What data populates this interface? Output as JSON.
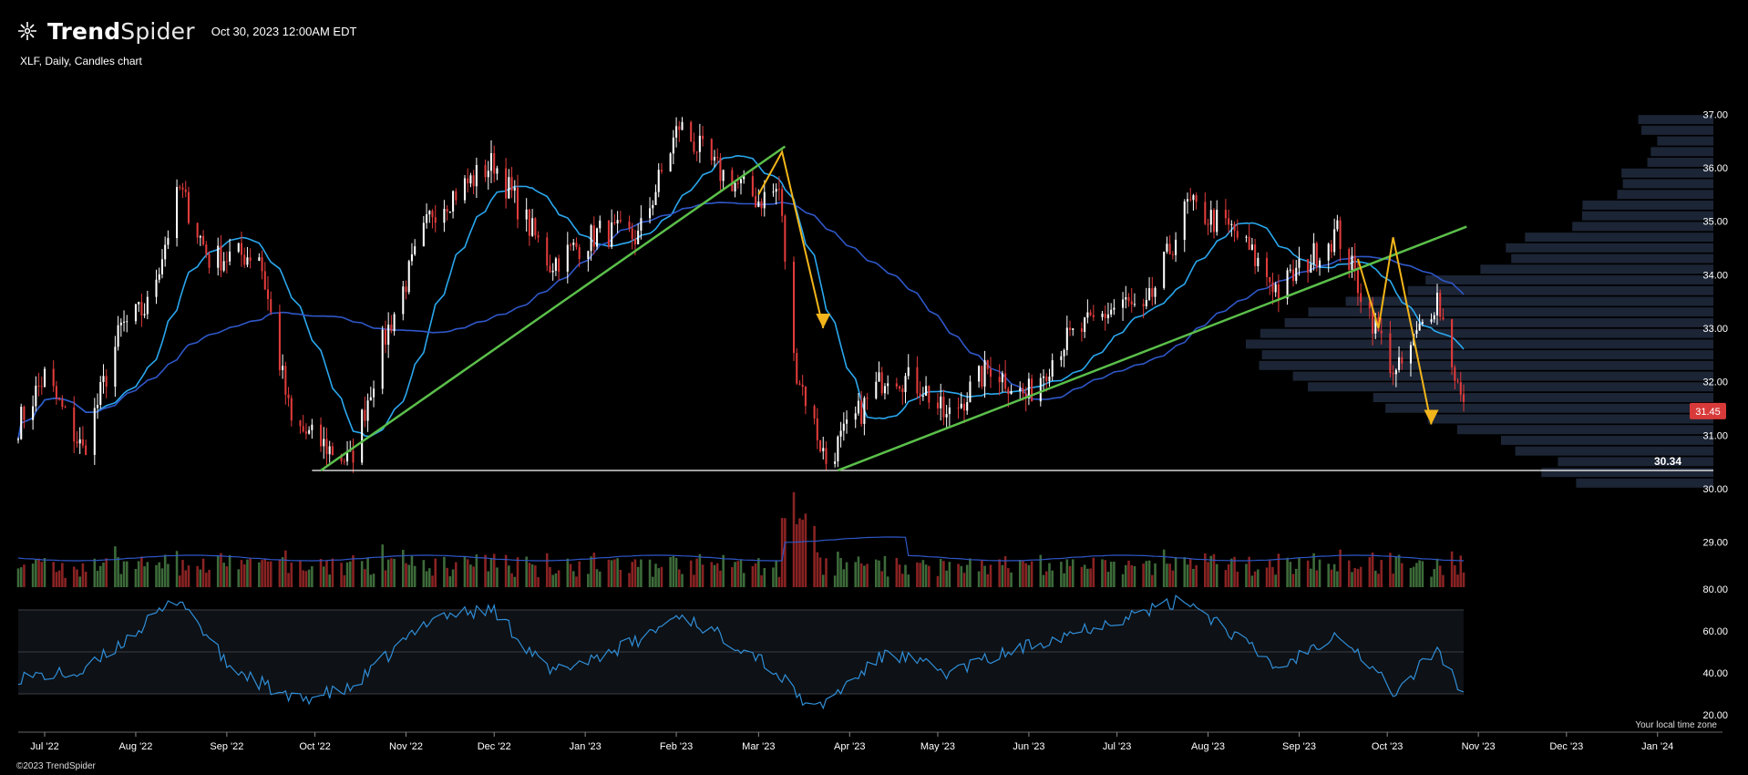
{
  "header": {
    "brand_bold": "Trend",
    "brand_regular": "Spider",
    "timestamp": "Oct 30, 2023 12:00AM EDT",
    "subtitle": "XLF, Daily, Candles chart"
  },
  "footer": {
    "copyright": "©2023 TrendSpider",
    "timezone_note": "Your local time zone"
  },
  "colors": {
    "background": "#000000",
    "up_candle": "#ffffff",
    "down_candle": "#e23b3b",
    "sma_fast": "#2aa7ee",
    "sma_slow": "#2f57c8",
    "trendline": "#5bbf4a",
    "pattern_arrow": "#f2b51b",
    "support_line": "#ffffff",
    "volume_profile": "#1c2535",
    "price_badge": "#d83a3a",
    "rsi_line": "#2f8ed8"
  },
  "chart_data": [
    {
      "type": "candlestick",
      "title": "XLF, Daily, Candles chart",
      "x_ticks": [
        "Jul '22",
        "Aug '22",
        "Sep '22",
        "Oct '22",
        "Nov '22",
        "Dec '22",
        "Jan '23",
        "Feb '23",
        "Mar '23",
        "Apr '23",
        "May '23",
        "Jun '23",
        "Jul '23",
        "Aug '23",
        "Sep '23",
        "Oct '23",
        "Nov '23",
        "Dec '23",
        "Jan '24"
      ],
      "y_ticks": [
        "37.00",
        "36.00",
        "35.00",
        "34.00",
        "33.00",
        "32.00",
        "31.00",
        "30.00",
        "29.00"
      ],
      "ylim": [
        28.6,
        37.4
      ],
      "x_range": [
        "2022-06-22",
        "2024-01-20"
      ],
      "close_path": [
        {
          "date": "2022-06-22",
          "close": 31.2
        },
        {
          "date": "2022-07-01",
          "close": 32.1
        },
        {
          "date": "2022-07-14",
          "close": 30.7
        },
        {
          "date": "2022-07-27",
          "close": 33.0
        },
        {
          "date": "2022-08-05",
          "close": 33.4
        },
        {
          "date": "2022-08-16",
          "close": 35.6
        },
        {
          "date": "2022-08-26",
          "close": 34.3
        },
        {
          "date": "2022-09-12",
          "close": 34.4
        },
        {
          "date": "2022-09-23",
          "close": 31.2
        },
        {
          "date": "2022-10-13",
          "close": 30.5
        },
        {
          "date": "2022-10-24",
          "close": 32.7
        },
        {
          "date": "2022-11-10",
          "close": 35.2
        },
        {
          "date": "2022-12-01",
          "close": 36.1
        },
        {
          "date": "2022-12-20",
          "close": 34.2
        },
        {
          "date": "2023-01-06",
          "close": 34.8
        },
        {
          "date": "2023-01-19",
          "close": 34.7
        },
        {
          "date": "2023-02-02",
          "close": 36.8
        },
        {
          "date": "2023-02-14",
          "close": 36.0
        },
        {
          "date": "2023-03-01",
          "close": 35.4
        },
        {
          "date": "2023-03-08",
          "close": 35.6
        },
        {
          "date": "2023-03-13",
          "close": 32.4
        },
        {
          "date": "2023-03-24",
          "close": 30.5
        },
        {
          "date": "2023-04-14",
          "close": 32.2
        },
        {
          "date": "2023-04-26",
          "close": 31.9
        },
        {
          "date": "2023-05-04",
          "close": 31.3
        },
        {
          "date": "2023-05-19",
          "close": 32.3
        },
        {
          "date": "2023-05-31",
          "close": 31.7
        },
        {
          "date": "2023-06-12",
          "close": 32.7
        },
        {
          "date": "2023-07-03",
          "close": 33.5
        },
        {
          "date": "2023-07-10",
          "close": 33.2
        },
        {
          "date": "2023-07-25",
          "close": 35.3
        },
        {
          "date": "2023-08-10",
          "close": 34.8
        },
        {
          "date": "2023-08-25",
          "close": 33.7
        },
        {
          "date": "2023-09-14",
          "close": 34.8
        },
        {
          "date": "2023-09-22",
          "close": 33.7
        },
        {
          "date": "2023-10-04",
          "close": 32.1
        },
        {
          "date": "2023-10-18",
          "close": 33.6
        },
        {
          "date": "2023-10-27",
          "close": 31.45
        }
      ],
      "last_price": "31.45",
      "support_level": "30.34",
      "overlays": [
        "short moving average (light blue)",
        "long moving average (dark blue)",
        "rising trendlines (green)",
        "zigzag targets (yellow arrows)",
        "horizontal support line",
        "volume profile"
      ]
    },
    {
      "type": "bar",
      "title": "",
      "ylabel": "",
      "note": "volume histogram under price panel with moving average line; largest spike in mid-March 2023"
    },
    {
      "type": "line",
      "title": "",
      "y_ticks": [
        "80.00",
        "60.00",
        "40.00",
        "20.00"
      ],
      "ylim": [
        20,
        80
      ],
      "band_lines": [
        70,
        50,
        30
      ],
      "path": [
        {
          "date": "2022-06-22",
          "v": 38
        },
        {
          "date": "2022-07-14",
          "v": 40
        },
        {
          "date": "2022-08-16",
          "v": 76
        },
        {
          "date": "2022-09-01",
          "v": 44
        },
        {
          "date": "2022-09-23",
          "v": 27
        },
        {
          "date": "2022-10-13",
          "v": 32
        },
        {
          "date": "2022-11-10",
          "v": 67
        },
        {
          "date": "2022-12-01",
          "v": 70
        },
        {
          "date": "2022-12-20",
          "v": 40
        },
        {
          "date": "2023-01-19",
          "v": 55
        },
        {
          "date": "2023-02-02",
          "v": 68
        },
        {
          "date": "2023-03-01",
          "v": 48
        },
        {
          "date": "2023-03-20",
          "v": 22
        },
        {
          "date": "2023-04-14",
          "v": 50
        },
        {
          "date": "2023-05-04",
          "v": 40
        },
        {
          "date": "2023-06-12",
          "v": 58
        },
        {
          "date": "2023-07-25",
          "v": 75
        },
        {
          "date": "2023-08-25",
          "v": 42
        },
        {
          "date": "2023-09-14",
          "v": 60
        },
        {
          "date": "2023-10-04",
          "v": 30
        },
        {
          "date": "2023-10-18",
          "v": 52
        },
        {
          "date": "2023-10-27",
          "v": 29
        }
      ]
    }
  ]
}
